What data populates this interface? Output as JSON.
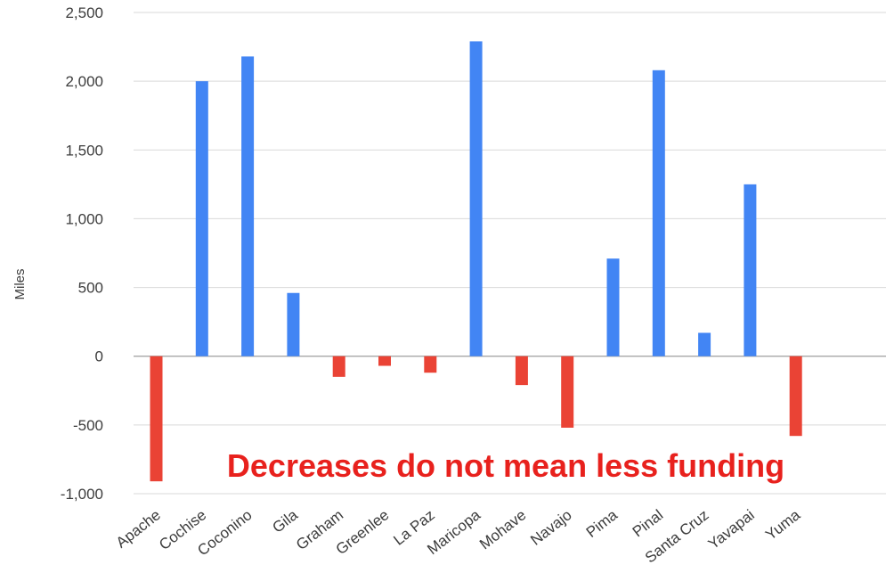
{
  "chart_data": {
    "type": "bar",
    "title": "",
    "xlabel": "",
    "ylabel": "Miles",
    "ylim": [
      -1000,
      2500
    ],
    "yticks": [
      -1000,
      -500,
      0,
      500,
      1000,
      1500,
      2000,
      2500
    ],
    "ytick_labels": [
      "-1,000",
      "-500",
      "0",
      "500",
      "1,000",
      "1,500",
      "2,000",
      "2,500"
    ],
    "grid": true,
    "legend": "none",
    "categories": [
      "Apache",
      "Cochise",
      "Coconino",
      "Gila",
      "Graham",
      "Greenlee",
      "La Paz",
      "Maricopa",
      "Mohave",
      "Navajo",
      "Pima",
      "Pinal",
      "Santa Cruz",
      "Yavapai",
      "Yuma"
    ],
    "values": [
      -910,
      2000,
      2180,
      460,
      -150,
      -70,
      -120,
      2290,
      -210,
      -520,
      710,
      2080,
      170,
      1250,
      -580
    ],
    "colors": {
      "positive": "#4285f4",
      "negative": "#ea4335",
      "annotation": "#e8211d"
    },
    "annotations": [
      {
        "text": "Decreases do not mean less funding"
      }
    ]
  }
}
